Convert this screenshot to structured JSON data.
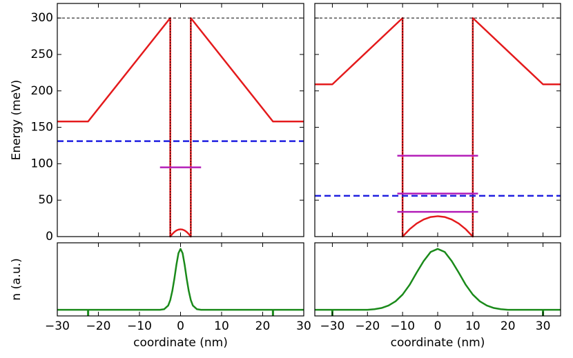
{
  "chart_data": [
    {
      "type": "line",
      "ylabel": "Energy (meV)",
      "xlim": [
        -30,
        30
      ],
      "ylim": [
        0,
        320
      ],
      "xticks": [
        -30,
        -20,
        -10,
        0,
        10,
        20,
        30
      ],
      "xtick_labels": false,
      "yticks": [
        0,
        50,
        100,
        150,
        200,
        250,
        300
      ],
      "ytick_labels": true,
      "series": [
        {
          "color": "#e41a1c",
          "dash": "solid",
          "x": [
            -30,
            -22.5,
            -2.5,
            -2.5,
            -2,
            -1.5,
            -1,
            -0.5,
            0,
            0.5,
            1,
            1.5,
            2,
            2.5,
            2.5,
            22.5,
            30
          ],
          "values": [
            158,
            158,
            300,
            0,
            3.6,
            6.4,
            8.4,
            9.6,
            10,
            9.6,
            8.4,
            6.4,
            3.6,
            0,
            300,
            158,
            158
          ]
        },
        {
          "color": "#000000",
          "dash": "dashed",
          "x": [
            -30,
            30
          ],
          "values": [
            300,
            300
          ]
        },
        {
          "color": "#000000",
          "dash": "dotted",
          "x": [
            -2.5,
            -2.5
          ],
          "values": [
            0,
            300
          ]
        },
        {
          "color": "#000000",
          "dash": "dotted",
          "x": [
            2.5,
            2.5
          ],
          "values": [
            0,
            300
          ]
        },
        {
          "color": "#1f1fe0",
          "dash": "wide",
          "x": [
            -30,
            30
          ],
          "values": [
            131,
            131
          ]
        },
        {
          "color": "#b41fb8",
          "dash": "solid",
          "x": [
            -5,
            5
          ],
          "values": [
            95,
            95
          ]
        }
      ]
    },
    {
      "type": "line",
      "xlim": [
        -35,
        35
      ],
      "ylim": [
        0,
        320
      ],
      "xticks": [
        -30,
        -20,
        -10,
        0,
        10,
        20,
        30
      ],
      "xtick_labels": false,
      "yticks": [
        0,
        50,
        100,
        150,
        200,
        250,
        300
      ],
      "ytick_labels": false,
      "series": [
        {
          "color": "#e41a1c",
          "dash": "solid",
          "x": [
            -35,
            -30,
            -10,
            -10,
            -8,
            -6,
            -4,
            -2,
            0,
            2,
            4,
            6,
            8,
            10,
            10,
            30,
            35
          ],
          "values": [
            209,
            209,
            300,
            0,
            10.1,
            17.9,
            23.5,
            26.9,
            28,
            26.9,
            23.5,
            17.9,
            10.1,
            0,
            300,
            209,
            209
          ]
        },
        {
          "color": "#000000",
          "dash": "dashed",
          "x": [
            -35,
            35
          ],
          "values": [
            300,
            300
          ]
        },
        {
          "color": "#000000",
          "dash": "dotted",
          "x": [
            -10,
            -10
          ],
          "values": [
            0,
            300
          ]
        },
        {
          "color": "#000000",
          "dash": "dotted",
          "x": [
            10,
            10
          ],
          "values": [
            0,
            300
          ]
        },
        {
          "color": "#1f1fe0",
          "dash": "wide",
          "x": [
            -35,
            35
          ],
          "values": [
            56,
            56
          ]
        },
        {
          "color": "#b41fb8",
          "dash": "solid",
          "x": [
            -11.5,
            11.5
          ],
          "values": [
            111,
            111
          ]
        },
        {
          "color": "#b41fb8",
          "dash": "solid",
          "x": [
            -11.5,
            11.5
          ],
          "values": [
            59,
            59
          ]
        },
        {
          "color": "#b41fb8",
          "dash": "solid",
          "x": [
            -11.5,
            11.5
          ],
          "values": [
            34,
            34
          ]
        }
      ]
    },
    {
      "type": "line",
      "ylabel": "n (a.u.)",
      "xlabel": "coordinate (nm)",
      "xlim": [
        -30,
        30
      ],
      "ylim": [
        -0.1,
        1.1
      ],
      "xticks": [
        {
          "value": -30,
          "label": "−30"
        },
        {
          "value": -20,
          "label": "−20"
        },
        {
          "value": -10,
          "label": "−10"
        },
        0,
        10,
        20,
        30
      ],
      "xtick_labels": true,
      "markers": {
        "color": "#1a8a1a",
        "x": [
          -22.5,
          22.5
        ]
      },
      "series": [
        {
          "color": "#1a8a1a",
          "dash": "solid",
          "x": [
            -30,
            -5,
            -4,
            -3,
            -2.5,
            -2,
            -1.5,
            -1,
            -0.5,
            0,
            0.5,
            1,
            1.5,
            2,
            2.5,
            3,
            4,
            5,
            30
          ],
          "values": [
            0,
            0,
            0.01,
            0.07,
            0.16,
            0.31,
            0.51,
            0.74,
            0.93,
            1,
            0.93,
            0.74,
            0.51,
            0.31,
            0.16,
            0.07,
            0.01,
            0,
            0
          ]
        }
      ]
    },
    {
      "type": "line",
      "xlabel": "coordinate (nm)",
      "xlim": [
        -35,
        35
      ],
      "ylim": [
        -0.1,
        1.1
      ],
      "xticks": [
        {
          "value": -30,
          "label": "−30"
        },
        {
          "value": -20,
          "label": "−20"
        },
        {
          "value": -10,
          "label": "−10"
        },
        0,
        10,
        20,
        30
      ],
      "xtick_labels": true,
      "markers": {
        "color": "#1a8a1a",
        "x": [
          -30,
          30
        ]
      },
      "series": [
        {
          "color": "#1a8a1a",
          "dash": "solid",
          "x": [
            -35,
            -20,
            -18,
            -16,
            -14,
            -12,
            -10,
            -8,
            -6,
            -4,
            -2,
            0,
            2,
            4,
            6,
            8,
            10,
            12,
            14,
            16,
            18,
            20,
            35
          ],
          "values": [
            0,
            0,
            0.01,
            0.03,
            0.07,
            0.14,
            0.25,
            0.41,
            0.61,
            0.8,
            0.95,
            1,
            0.95,
            0.8,
            0.61,
            0.41,
            0.25,
            0.14,
            0.07,
            0.03,
            0.01,
            0,
            0
          ]
        }
      ]
    }
  ]
}
